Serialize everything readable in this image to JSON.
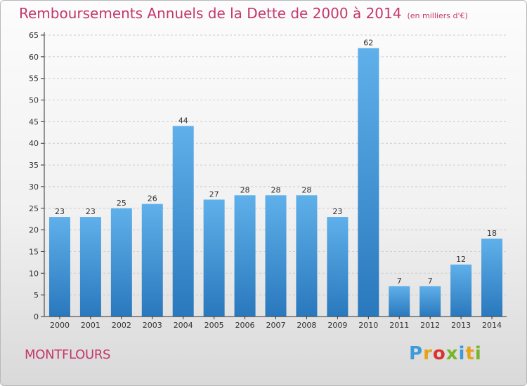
{
  "header": {
    "title": "Remboursements Annuels de la Dette de 2000 à 2014",
    "unit": "(en milliers d'€)"
  },
  "footer": {
    "commune": "MONTFLOURS",
    "logo_letters": [
      "P",
      "r",
      "o",
      "x",
      "i",
      "t",
      "i"
    ],
    "logo_colors": [
      "#3d9cd7",
      "#e8a21a",
      "#d9332e",
      "#79b529",
      "#3d9cd7",
      "#e8a21a",
      "#79b529"
    ]
  },
  "colors": {
    "title": "#c5366b",
    "bar_top": "#5fb0ea",
    "bar_bottom": "#2a78bd",
    "axis": "#333333",
    "grid": "#cccccc"
  },
  "chart_data": {
    "type": "bar",
    "title": "Remboursements Annuels de la Dette de 2000 à 2014",
    "subtitle": "(en milliers d'€)",
    "xlabel": "",
    "ylabel": "",
    "categories": [
      "2000",
      "2001",
      "2002",
      "2003",
      "2004",
      "2005",
      "2006",
      "2007",
      "2008",
      "2009",
      "2010",
      "2011",
      "2012",
      "2013",
      "2014"
    ],
    "values": [
      23,
      23,
      25,
      26,
      44,
      27,
      28,
      28,
      28,
      23,
      62,
      7,
      7,
      12,
      18
    ],
    "data_labels": [
      "23",
      "23",
      "25",
      "26",
      "44",
      "27",
      "28",
      "28",
      "28",
      "23",
      "62",
      "7",
      "7",
      "12",
      "18"
    ],
    "ylim": [
      0,
      65
    ],
    "yticks": [
      "0",
      "5",
      "10",
      "15",
      "20",
      "25",
      "30",
      "35",
      "40",
      "45",
      "50",
      "55",
      "60",
      "65"
    ],
    "grid": "horizontal dashed",
    "legend": "none"
  }
}
